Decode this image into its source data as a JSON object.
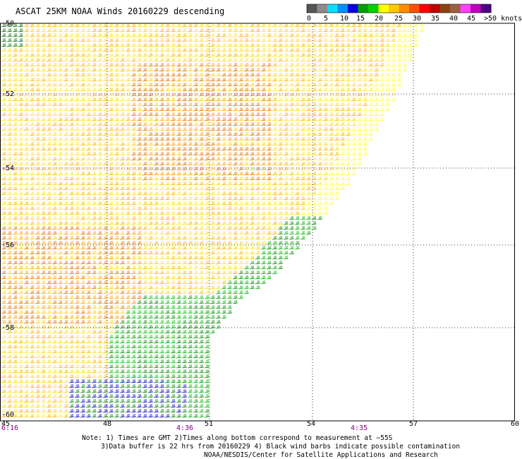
{
  "title": "ASCAT 25KM NOAA Winds 20160229 descending",
  "legend": {
    "colors": [
      "#555555",
      "#8c8c8c",
      "#00e0ff",
      "#0090ff",
      "#0000e0",
      "#00a000",
      "#00d000",
      "#ffff00",
      "#ffc800",
      "#ff8c00",
      "#ff5000",
      "#ff0000",
      "#c00000",
      "#8b4513",
      "#a06040",
      "#ff40ff",
      "#c000c0",
      "#4b0082"
    ],
    "labels": [
      "0",
      "5",
      "10",
      "15",
      "20",
      "25",
      "30",
      "35",
      "40",
      "45",
      ">50 knots"
    ]
  },
  "map": {
    "lat_labels": [
      "-50",
      "-52",
      "-54",
      "-56",
      "-58",
      "-60"
    ],
    "lon_labels": [
      "45",
      "48",
      "51",
      "54",
      "57",
      "60"
    ],
    "time_labels": [
      "6:16",
      "4:36",
      "4:35"
    ]
  },
  "notes": {
    "line1": "Note: 1) Times are GMT 2)Times along bottom correspond to measurement at −55S",
    "line2": "3)Data buffer is 22 hrs from 20160229 4) Black wind barbs indicate possible contamination",
    "line3": "NOAA/NESDIS/Center for Satellite Applications and Research"
  }
}
